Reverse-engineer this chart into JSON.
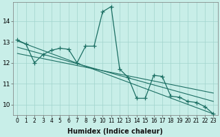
{
  "bg_color": "#c8eee8",
  "grid_color": "#a0d4cc",
  "line_color": "#1a6e62",
  "xlabel": "Humidex (Indice chaleur)",
  "x": [
    0,
    1,
    2,
    3,
    4,
    5,
    6,
    7,
    8,
    9,
    10,
    11,
    12,
    13,
    14,
    15,
    16,
    17,
    18,
    19,
    20,
    21,
    22,
    23
  ],
  "main_y": [
    13.1,
    12.9,
    12.0,
    12.4,
    12.6,
    12.7,
    12.65,
    12.0,
    12.8,
    12.8,
    14.45,
    14.7,
    11.7,
    11.3,
    10.3,
    10.3,
    11.4,
    11.35,
    10.4,
    10.35,
    10.15,
    10.1,
    9.9,
    9.55
  ],
  "trend1_x": [
    0,
    23
  ],
  "trend1_y": [
    13.05,
    9.55
  ],
  "trend2_x": [
    0,
    23
  ],
  "trend2_y": [
    12.75,
    10.15
  ],
  "trend3_x": [
    0,
    23
  ],
  "trend3_y": [
    12.45,
    10.55
  ],
  "ylim": [
    9.5,
    14.9
  ],
  "xlim": [
    -0.5,
    23.5
  ],
  "yticks": [
    10,
    11,
    12,
    13,
    14
  ],
  "xticks": [
    0,
    1,
    2,
    3,
    4,
    5,
    6,
    7,
    8,
    9,
    10,
    11,
    12,
    13,
    14,
    15,
    16,
    17,
    18,
    19,
    20,
    21,
    22,
    23
  ]
}
